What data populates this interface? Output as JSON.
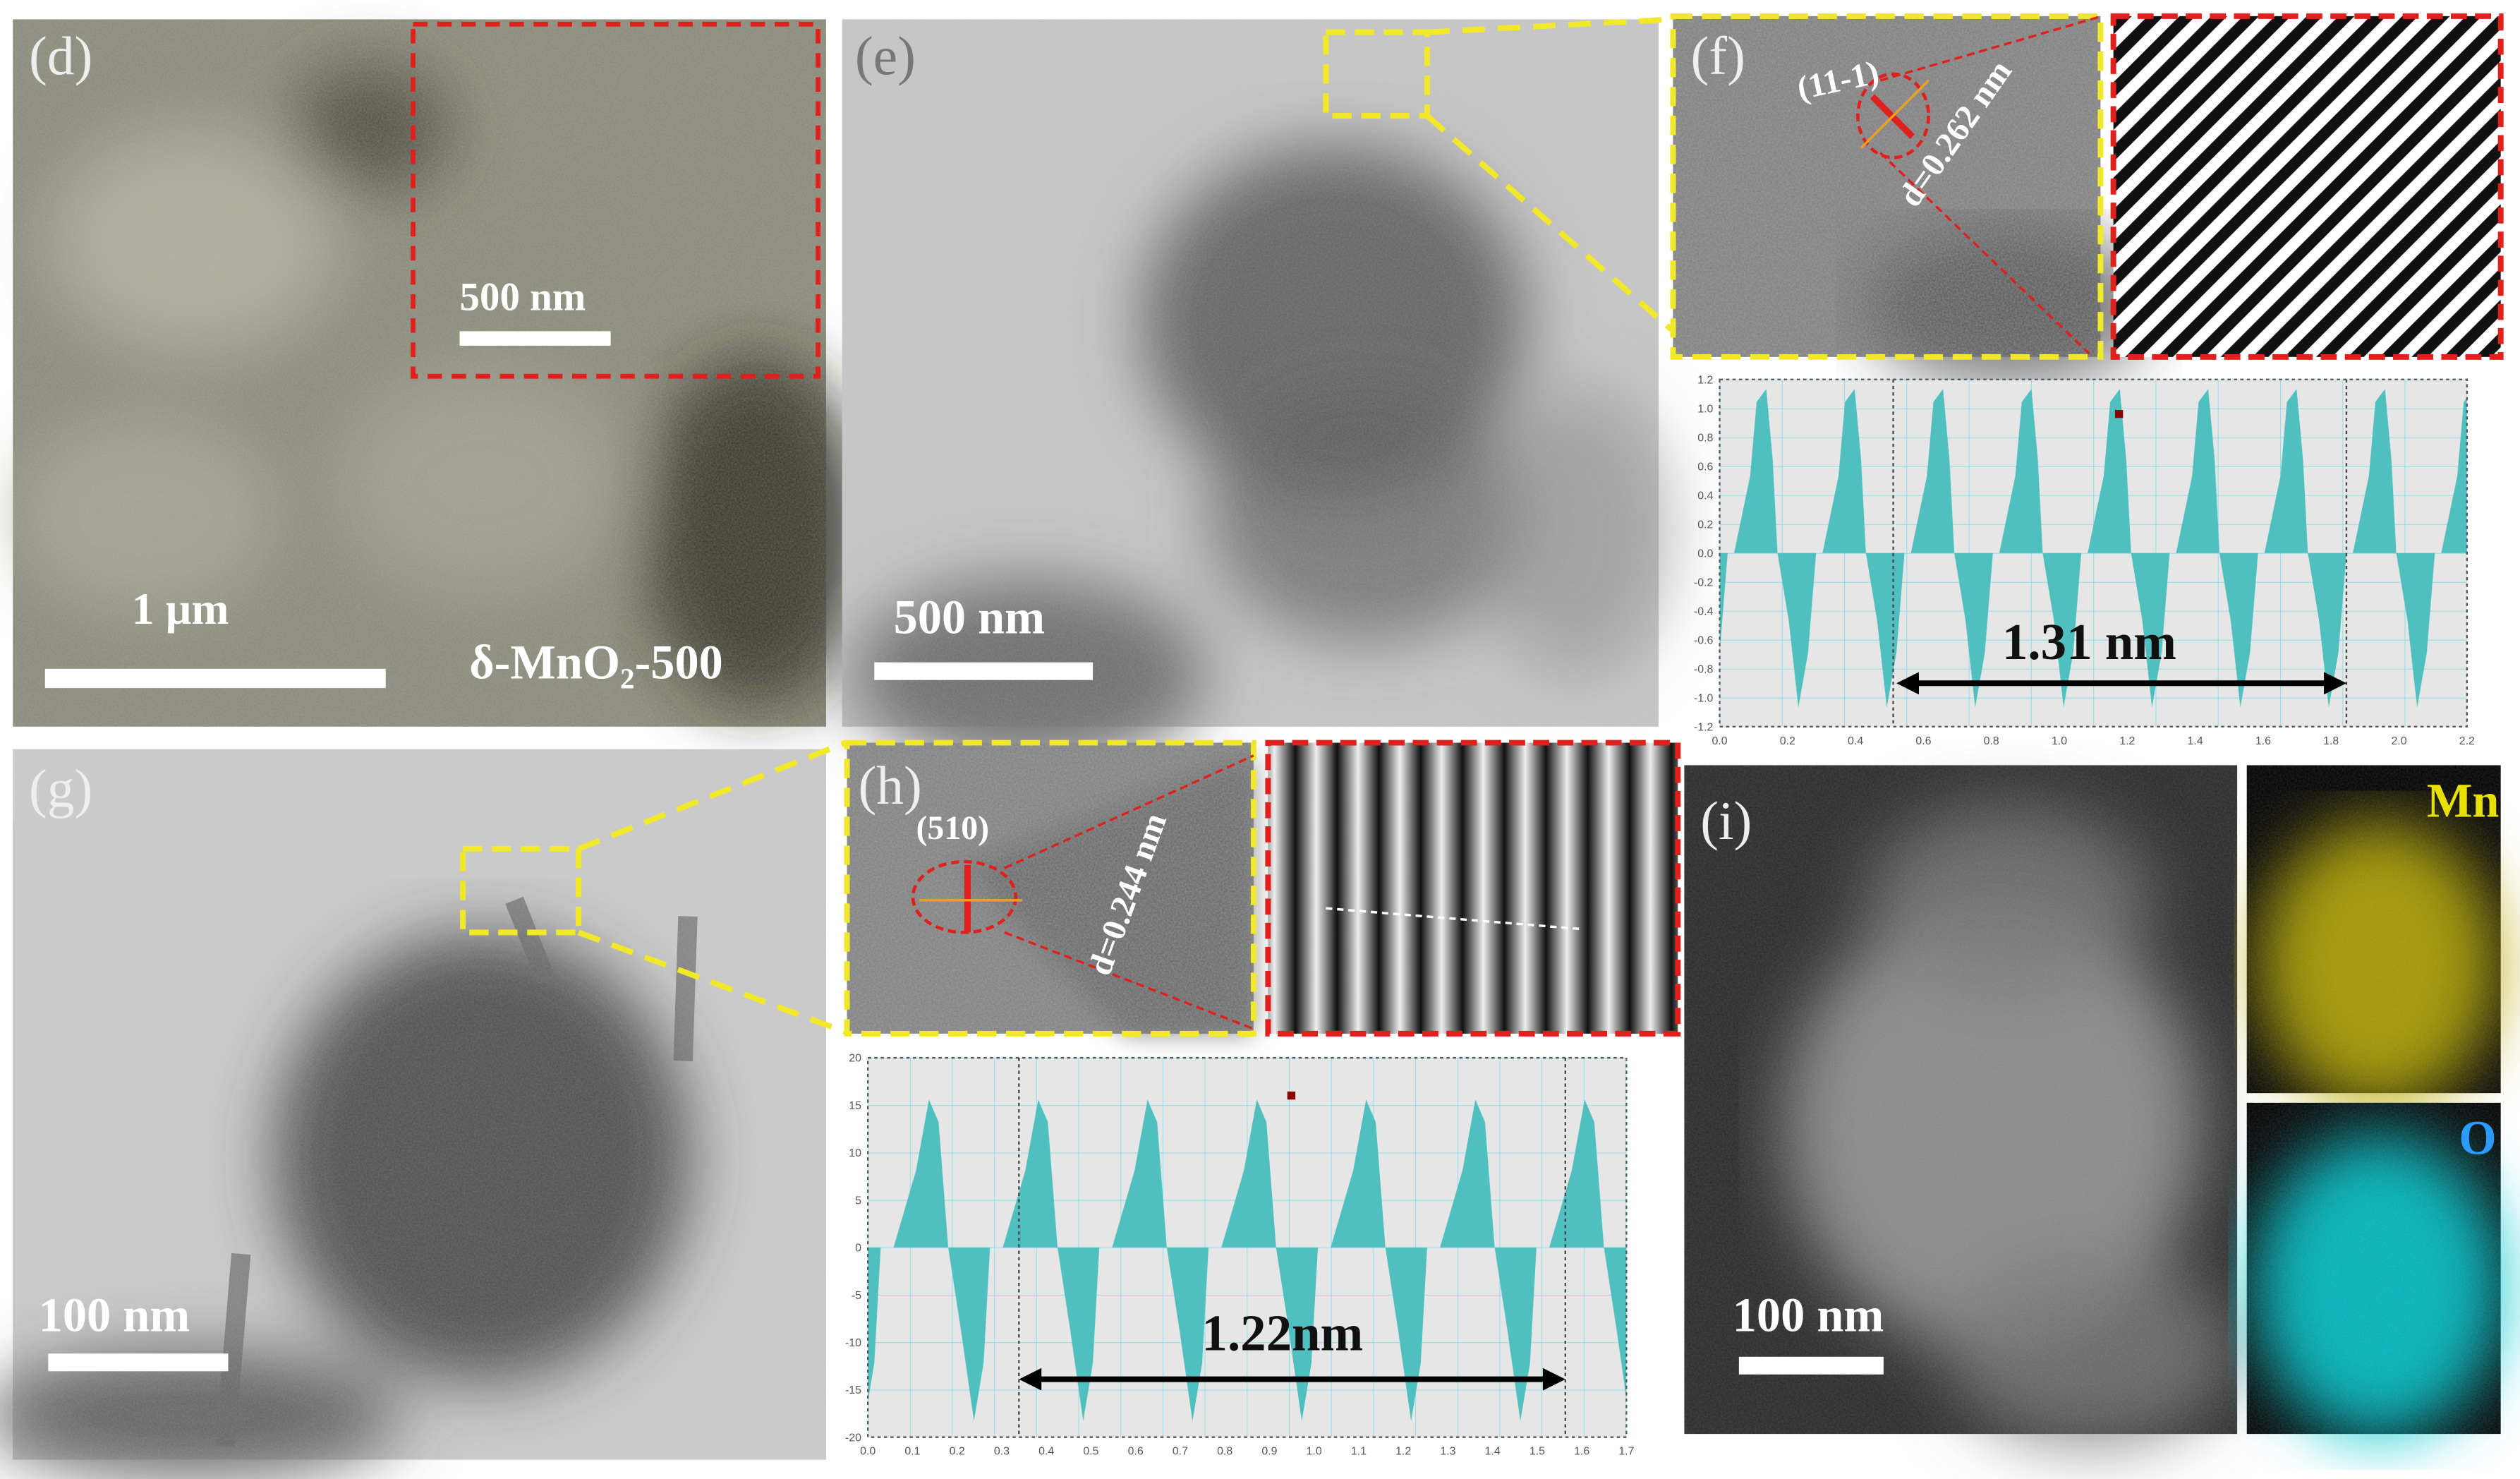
{
  "panels": {
    "d": {
      "label": "(d)",
      "inset_scale": "500 nm",
      "scale": "1 µm",
      "sample": "δ-MnO₂-500"
    },
    "e": {
      "label": "(e)",
      "scale": "500 nm"
    },
    "f": {
      "label": "(f)",
      "plane": "(11-1)",
      "spacing": "d=0.262 nm",
      "profile": {
        "yticks": [
          "1.2",
          "1.0",
          "0.8",
          "0.6",
          "0.4",
          "0.2",
          "0.0",
          "-0.2",
          "-0.4",
          "-0.6",
          "-0.8",
          "-1.0",
          "-1.2"
        ],
        "xticks": [
          "0.0",
          "0.2",
          "0.4",
          "0.6",
          "0.8",
          "1.0",
          "1.2",
          "1.4",
          "1.6",
          "1.8",
          "2.0",
          "2.2"
        ],
        "distance": "1.31 nm"
      }
    },
    "g": {
      "label": "(g)",
      "scale": "100 nm"
    },
    "h": {
      "label": "(h)",
      "plane": "(510)",
      "spacing": "d=0.244 nm",
      "profile": {
        "yticks": [
          "20",
          "15",
          "10",
          "5",
          "0",
          "-5",
          "-10",
          "-15",
          "-20"
        ],
        "xticks": [
          "0.0",
          "0.1",
          "0.2",
          "0.3",
          "0.4",
          "0.5",
          "0.6",
          "0.7",
          "0.8",
          "0.9",
          "1.0",
          "1.1",
          "1.2",
          "1.3",
          "1.4",
          "1.5",
          "1.6",
          "1.7"
        ],
        "distance": "1.22nm"
      }
    },
    "i": {
      "label": "(i)",
      "scale": "100 nm",
      "maps": [
        "Mn",
        "O"
      ]
    }
  }
}
